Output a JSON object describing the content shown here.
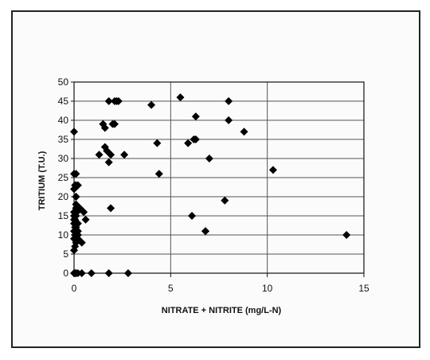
{
  "chart_data": {
    "type": "scatter",
    "title": "",
    "xlabel": "NITRATE + NITRITE (mg/L-N)",
    "ylabel": "TRITIUM (T.U.)",
    "xlim": [
      0,
      15
    ],
    "ylim": [
      0,
      50
    ],
    "xticks": [
      0,
      5,
      10,
      15
    ],
    "yticks": [
      0,
      5,
      10,
      15,
      20,
      25,
      30,
      35,
      40,
      45,
      50
    ],
    "grid": true,
    "marker": "diamond",
    "marker_color": "#000000",
    "series": [
      {
        "x": [
          0.0,
          0.05,
          0.1,
          0.2,
          0.4,
          0.9,
          1.8,
          2.8,
          0.0,
          0.05,
          0.1,
          0.0,
          0.05,
          0.1,
          0.0,
          0.05,
          0.1,
          0.2,
          0.0,
          0.05,
          0.1,
          0.0,
          0.05,
          0.15,
          0.3,
          0.5,
          0.6,
          0.1,
          0.2,
          0.1,
          0.2,
          0.4,
          0.0,
          0.1,
          0.2,
          0.0,
          0.1,
          0.1,
          0.1,
          1.9,
          0.0,
          0.05,
          0.1,
          0.0,
          0.1,
          0.2,
          0.1,
          0.0,
          1.3,
          1.5,
          1.6,
          1.8,
          1.6,
          1.7,
          1.8,
          2.1,
          2.3,
          2.0,
          2.2,
          2.6,
          1.9,
          4.0,
          4.3,
          4.4,
          5.5,
          5.9,
          6.1,
          6.3,
          6.2,
          6.3,
          6.8,
          7.0,
          7.8,
          8.0,
          8.0,
          8.8,
          10.3,
          14.1,
          2.1,
          6.8
        ],
        "y": [
          0,
          0,
          0,
          0,
          0,
          0,
          0,
          0,
          6,
          7,
          8,
          9,
          10,
          10,
          11,
          12,
          12,
          13,
          14,
          14,
          15,
          15,
          16,
          16,
          17,
          16,
          14,
          9,
          9,
          10,
          10,
          8,
          13,
          12,
          11,
          16,
          17,
          18,
          20,
          17,
          22,
          23,
          26,
          37,
          23,
          23,
          20,
          26,
          31,
          39,
          38,
          45,
          33,
          32,
          29,
          45,
          45,
          39,
          45,
          31,
          31,
          44,
          34,
          26,
          46,
          34,
          15,
          41,
          35,
          35,
          11,
          30,
          19,
          45,
          40,
          37,
          27,
          10,
          39,
          11
        ]
      }
    ]
  }
}
